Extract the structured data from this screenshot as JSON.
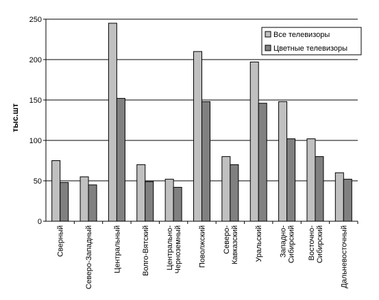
{
  "chart_data": {
    "type": "bar",
    "title": "",
    "xlabel": "",
    "ylabel": "тыс.шт",
    "ylim": [
      0,
      250
    ],
    "yticks": [
      0,
      50,
      100,
      150,
      200,
      250
    ],
    "grid": true,
    "legend_position": "top-right",
    "categories": [
      [
        "Сверный"
      ],
      [
        "Северо-Западный"
      ],
      [
        "Центральный"
      ],
      [
        "Волго-Вятский"
      ],
      [
        "Центрально-",
        "Черноземный"
      ],
      [
        "Поволжский"
      ],
      [
        "Северо-",
        "Кавказский"
      ],
      [
        "Уральский"
      ],
      [
        "Западно-",
        "Сибирский"
      ],
      [
        "Восточно-",
        "Сибирский"
      ],
      [
        "Дальневосточный"
      ]
    ],
    "series": [
      {
        "name": "Все телевизоры",
        "color": "#c0c0c0",
        "values": [
          75,
          55,
          245,
          70,
          52,
          210,
          80,
          197,
          148,
          102,
          60
        ]
      },
      {
        "name": "Цветные телевизоры",
        "color": "#808080",
        "values": [
          48,
          45,
          152,
          49,
          42,
          148,
          70,
          146,
          102,
          80,
          52
        ]
      }
    ]
  }
}
